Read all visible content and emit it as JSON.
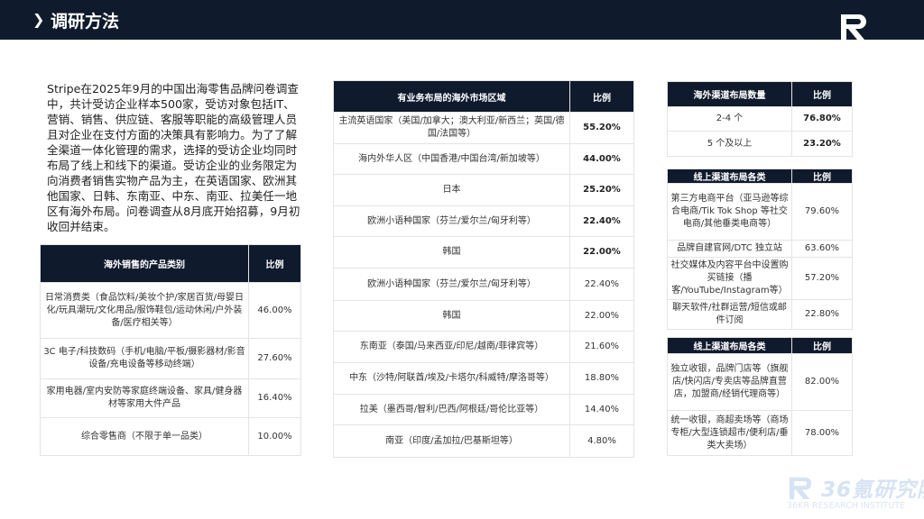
{
  "header": {
    "title": "调研方法",
    "icon": "chevron-right-icon"
  },
  "intro": "Stripe在2025年9月的中国出海零售品牌问卷调查中，共计受访企业样本500家，受访对象包括IT、营销、销售、供应链、客服等职能的高级管理人员且对企业在支付方面的决策具有影响力。为了了解全渠道一体化管理的需求，选择的受访企业均同时布局了线上和线下的渠道。受访企业的业务限定为向消费者销售实物产品为主，在英语国家、欧洲其他国家、日韩、东南亚、中东、南亚、拉美任一地区有海外布局。问卷调查从8月底开始招募，9月初收回并结束。",
  "products": {
    "headers": [
      "海外销售的产品类别",
      "比例"
    ],
    "rows": [
      [
        "日常消费类（食品饮料/美妆个护/家居百货/母婴日化/玩具潮玩/文化用品/服饰鞋包/运动休闲/户外装备/医疗相关等）",
        "46.00%"
      ],
      [
        "3C 电子/科技数码（手机/电脑/平板/摄影器材/影音设备/充电设备等移动终端）",
        "27.60%"
      ],
      [
        "家用电器/室内安防等家庭终端设备、家具/健身器材等家用大件产品",
        "16.40%"
      ],
      [
        "综合零售商（不限于单一品类）",
        "10.00%"
      ]
    ]
  },
  "markets": {
    "headers": [
      "有业务布局的海外市场区域",
      "比例"
    ],
    "rows": [
      [
        "主流英语国家（美国/加拿大；澳大利亚/新西兰；英国/德国/法国等）",
        "55.20%"
      ],
      [
        "海内外华人区（中国香港/中国台湾/新加坡等）",
        "44.00%"
      ],
      [
        "日本",
        "25.20%"
      ],
      [
        "欧洲小语种国家（芬兰/爱尔兰/匈牙利等）",
        "22.40%"
      ],
      [
        "韩国",
        "22.00%"
      ],
      [
        "欧洲小语种国家（芬兰/爱尔兰/匈牙利等）",
        "22.40%"
      ],
      [
        "韩国",
        "22.00%"
      ],
      [
        "东南亚（泰国/马来西亚/印尼/越南/菲律宾等）",
        "21.60%"
      ],
      [
        "中东（沙特/阿联酋/埃及/卡塔尔/科威特/摩洛哥等）",
        "18.80%"
      ],
      [
        "拉美（墨西哥/智利/巴西/阿根廷/哥伦比亚等）",
        "14.40%"
      ],
      [
        "南亚（印度/孟加拉/巴基斯坦等）",
        "4.80%"
      ]
    ]
  },
  "channel_count": {
    "headers": [
      "海外渠道布局数量",
      "比例"
    ],
    "rows": [
      [
        "2-4 个",
        "76.80%"
      ],
      [
        "5 个及以上",
        "23.20%"
      ]
    ]
  },
  "online": {
    "headers": [
      "线上渠道布局各类",
      "比例"
    ],
    "rows": [
      [
        "第三方电商平台（亚马逊等综合电商/Tik Tok Shop 等社交电商/其他垂类电商等）",
        "79.60%"
      ],
      [
        "品牌自建官网/DTC 独立站",
        "63.60%"
      ],
      [
        "社交媒体及内容平台中设置购买链接（播客/YouTube/Instagram等）",
        "57.20%"
      ],
      [
        "聊天软件/社群运营/短信或邮件订阅",
        "22.80%"
      ]
    ]
  },
  "offline": {
    "headers": [
      "线上渠道布局各类",
      "比例"
    ],
    "rows": [
      [
        "独立收银，品牌门店等（旗舰店/快闪店/专卖店等品牌直营店，加盟商/经销代理商等）",
        "82.00%"
      ],
      [
        "统一收银，商超卖场等（商场专柜/大型连锁超市/便利店/垂类大卖场）",
        "78.00%"
      ]
    ]
  },
  "watermark": {
    "cn": "36氪研究院",
    "en": "36KR RESEARCH INSTITUTE"
  },
  "colors": {
    "navy": "#0f1b2d",
    "watermark": "#d6e3f3"
  }
}
